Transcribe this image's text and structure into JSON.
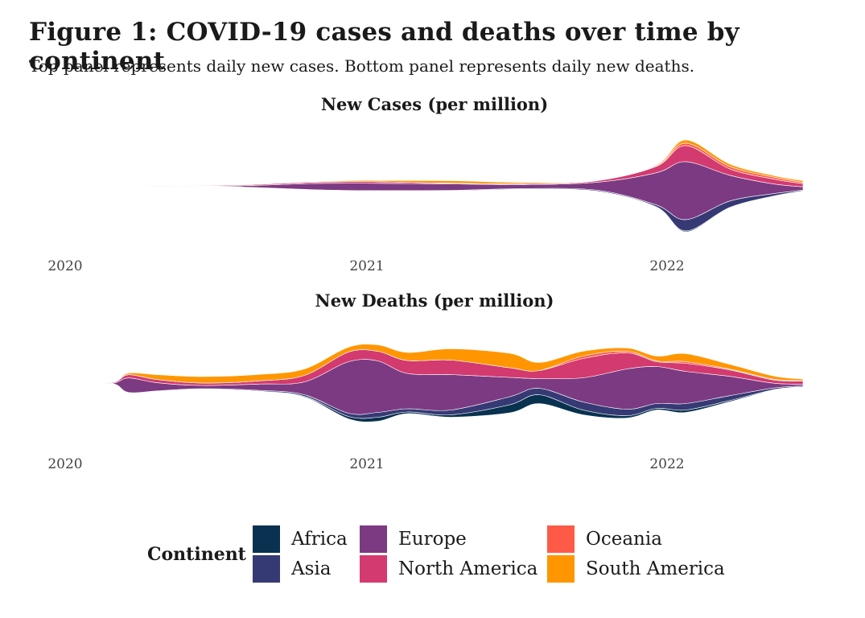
{
  "title": "Figure 1: COVID-19 cases and deaths over time by continent",
  "subtitle": "Top panel represents daily new cases. Bottom panel represents daily new deaths.",
  "legend": {
    "title": "Continent",
    "items": [
      {
        "name": "Africa",
        "color": "#08324f"
      },
      {
        "name": "Asia",
        "color": "#363a74"
      },
      {
        "name": "Europe",
        "color": "#7c3a82"
      },
      {
        "name": "North America",
        "color": "#d33a6f"
      },
      {
        "name": "Oceania",
        "color": "#ff5a47"
      },
      {
        "name": "South America",
        "color": "#ff9600"
      }
    ]
  },
  "chart_data": [
    {
      "type": "area",
      "subtype": "streamgraph",
      "title": "New Cases (per million)",
      "x": [
        2020.0,
        2020.25,
        2020.5,
        2020.75,
        2020.9,
        2021.0,
        2021.25,
        2021.5,
        2021.75,
        2021.95,
        2022.05,
        2022.2,
        2022.35,
        2022.45
      ],
      "x_ticks": [
        "2020",
        "2021",
        "2022"
      ],
      "series": [
        {
          "name": "Africa",
          "values": [
            0,
            0,
            0.1,
            0.1,
            0.15,
            0.15,
            0.1,
            0.05,
            0.15,
            0.1,
            0.6,
            0.2,
            0.1,
            0.1
          ]
        },
        {
          "name": "Asia",
          "values": [
            0,
            0.05,
            0.1,
            0.2,
            0.3,
            0.3,
            0.3,
            0.4,
            0.6,
            1.2,
            7,
            4,
            1.5,
            0.5
          ]
        },
        {
          "name": "Europe",
          "values": [
            0,
            0.2,
            0.5,
            3.5,
            4.5,
            4.5,
            4,
            2.5,
            5,
            20,
            36,
            16,
            6,
            2
          ]
        },
        {
          "name": "North America",
          "values": [
            0,
            0.3,
            0.5,
            0.8,
            1,
            1,
            0.5,
            0.5,
            1,
            4,
            10,
            4,
            3,
            2
          ]
        },
        {
          "name": "Oceania",
          "values": [
            0,
            0,
            0,
            0,
            0,
            0,
            0,
            0,
            0,
            0.5,
            1.5,
            1.5,
            1.2,
            0.8
          ]
        },
        {
          "name": "South America",
          "values": [
            0,
            0.1,
            0.3,
            0.3,
            0.6,
            0.8,
            1.5,
            0.8,
            0.2,
            0.5,
            2,
            1.5,
            1,
            1
          ]
        }
      ]
    },
    {
      "type": "area",
      "subtype": "streamgraph",
      "title": "New Deaths (per million)",
      "x": [
        2020.0,
        2020.1,
        2020.15,
        2020.25,
        2020.4,
        2020.6,
        2020.75,
        2020.9,
        2021.0,
        2021.1,
        2021.25,
        2021.45,
        2021.55,
        2021.7,
        2021.85,
        2021.95,
        2022.05,
        2022.2,
        2022.35,
        2022.45
      ],
      "x_ticks": [
        "2020",
        "2021",
        "2022"
      ],
      "series": [
        {
          "name": "Africa",
          "values": [
            0,
            0,
            0.01,
            0.01,
            0.02,
            0.03,
            0.05,
            0.15,
            0.25,
            0.1,
            0.15,
            0.5,
            0.55,
            0.3,
            0.15,
            0.1,
            0.15,
            0.08,
            0.03,
            0.02
          ]
        },
        {
          "name": "Asia",
          "values": [
            0,
            0,
            0.02,
            0.02,
            0.03,
            0.05,
            0.1,
            0.2,
            0.3,
            0.2,
            0.3,
            0.5,
            0.4,
            0.5,
            0.4,
            0.3,
            0.4,
            0.3,
            0.1,
            0.05
          ]
        },
        {
          "name": "Europe",
          "values": [
            0,
            0.05,
            0.9,
            0.5,
            0.2,
            0.4,
            0.8,
            3.2,
            3.2,
            2.2,
            2.2,
            1.2,
            0.6,
            1.5,
            2.5,
            2.3,
            2.0,
            1.2,
            0.3,
            0.1
          ]
        },
        {
          "name": "North America",
          "values": [
            0,
            0.05,
            0.2,
            0.2,
            0.15,
            0.2,
            0.4,
            0.6,
            0.6,
            0.8,
            0.9,
            0.6,
            0.5,
            1.2,
            1.0,
            0.3,
            0.5,
            0.4,
            0.2,
            0.2
          ]
        },
        {
          "name": "Oceania",
          "values": [
            0,
            0,
            0,
            0,
            0,
            0,
            0,
            0,
            0,
            0,
            0,
            0,
            0,
            0.15,
            0.1,
            0.05,
            0.1,
            0.05,
            0.05,
            0.02
          ]
        },
        {
          "name": "South America",
          "values": [
            0,
            0,
            0.1,
            0.3,
            0.4,
            0.4,
            0.4,
            0.3,
            0.4,
            0.5,
            0.7,
            0.9,
            0.5,
            0.3,
            0.2,
            0.3,
            0.5,
            0.3,
            0.2,
            0.1
          ]
        }
      ]
    }
  ]
}
